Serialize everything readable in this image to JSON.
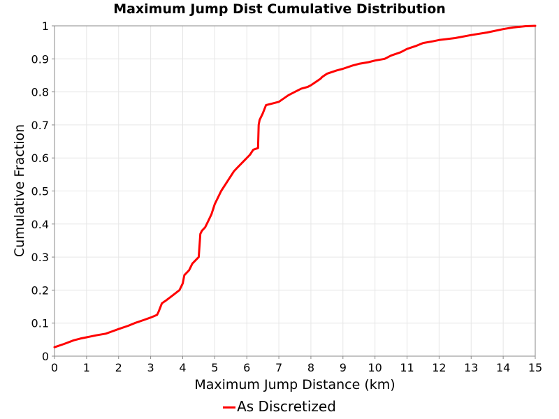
{
  "chart_data": {
    "type": "line",
    "title": "Maximum Jump Dist Cumulative Distribution",
    "xlabel": "Maximum Jump Distance (km)",
    "ylabel": "Cumulative Fraction",
    "xlim": [
      0,
      15
    ],
    "ylim": [
      0,
      1
    ],
    "x_ticks": [
      0,
      1,
      2,
      3,
      4,
      5,
      6,
      7,
      8,
      9,
      10,
      11,
      12,
      13,
      14,
      15
    ],
    "y_ticks": [
      0,
      0.1,
      0.2,
      0.3,
      0.4,
      0.5,
      0.6,
      0.7,
      0.8,
      0.9,
      1
    ],
    "y_tick_labels": [
      "0",
      "0.1",
      "0.2",
      "0.3",
      "0.4",
      "0.5",
      "0.6",
      "0.7",
      "0.8",
      "0.9",
      "1"
    ],
    "grid": true,
    "legend_position": "bottom-center",
    "series": [
      {
        "name": "As Discretized",
        "color": "#ff0000",
        "x": [
          0,
          0.3,
          0.6,
          0.8,
          1.0,
          1.3,
          1.6,
          1.8,
          2.0,
          2.3,
          2.5,
          2.8,
          3.0,
          3.2,
          3.25,
          3.35,
          3.5,
          3.7,
          3.9,
          4.0,
          4.05,
          4.2,
          4.3,
          4.5,
          4.55,
          4.6,
          4.7,
          4.8,
          4.9,
          5.0,
          5.1,
          5.2,
          5.4,
          5.6,
          5.7,
          5.9,
          6.1,
          6.2,
          6.35,
          6.37,
          6.4,
          6.5,
          6.6,
          6.8,
          7.0,
          7.3,
          7.5,
          7.7,
          7.9,
          8.0,
          8.3,
          8.35,
          8.5,
          8.8,
          9.0,
          9.3,
          9.5,
          9.8,
          10.0,
          10.3,
          10.5,
          10.8,
          11.0,
          11.3,
          11.5,
          11.8,
          12.0,
          12.5,
          13.0,
          13.5,
          14.0,
          14.3,
          14.7,
          15.0
        ],
        "y": [
          0.027,
          0.037,
          0.048,
          0.053,
          0.057,
          0.063,
          0.068,
          0.075,
          0.082,
          0.092,
          0.1,
          0.11,
          0.117,
          0.125,
          0.135,
          0.16,
          0.17,
          0.185,
          0.2,
          0.22,
          0.245,
          0.26,
          0.28,
          0.3,
          0.37,
          0.38,
          0.39,
          0.41,
          0.43,
          0.46,
          0.48,
          0.5,
          0.53,
          0.56,
          0.57,
          0.59,
          0.61,
          0.625,
          0.63,
          0.7,
          0.715,
          0.735,
          0.76,
          0.765,
          0.77,
          0.79,
          0.8,
          0.81,
          0.815,
          0.82,
          0.84,
          0.845,
          0.855,
          0.865,
          0.87,
          0.88,
          0.885,
          0.89,
          0.895,
          0.9,
          0.91,
          0.92,
          0.93,
          0.94,
          0.948,
          0.953,
          0.957,
          0.963,
          0.972,
          0.98,
          0.99,
          0.995,
          0.999,
          1.0
        ]
      }
    ]
  }
}
